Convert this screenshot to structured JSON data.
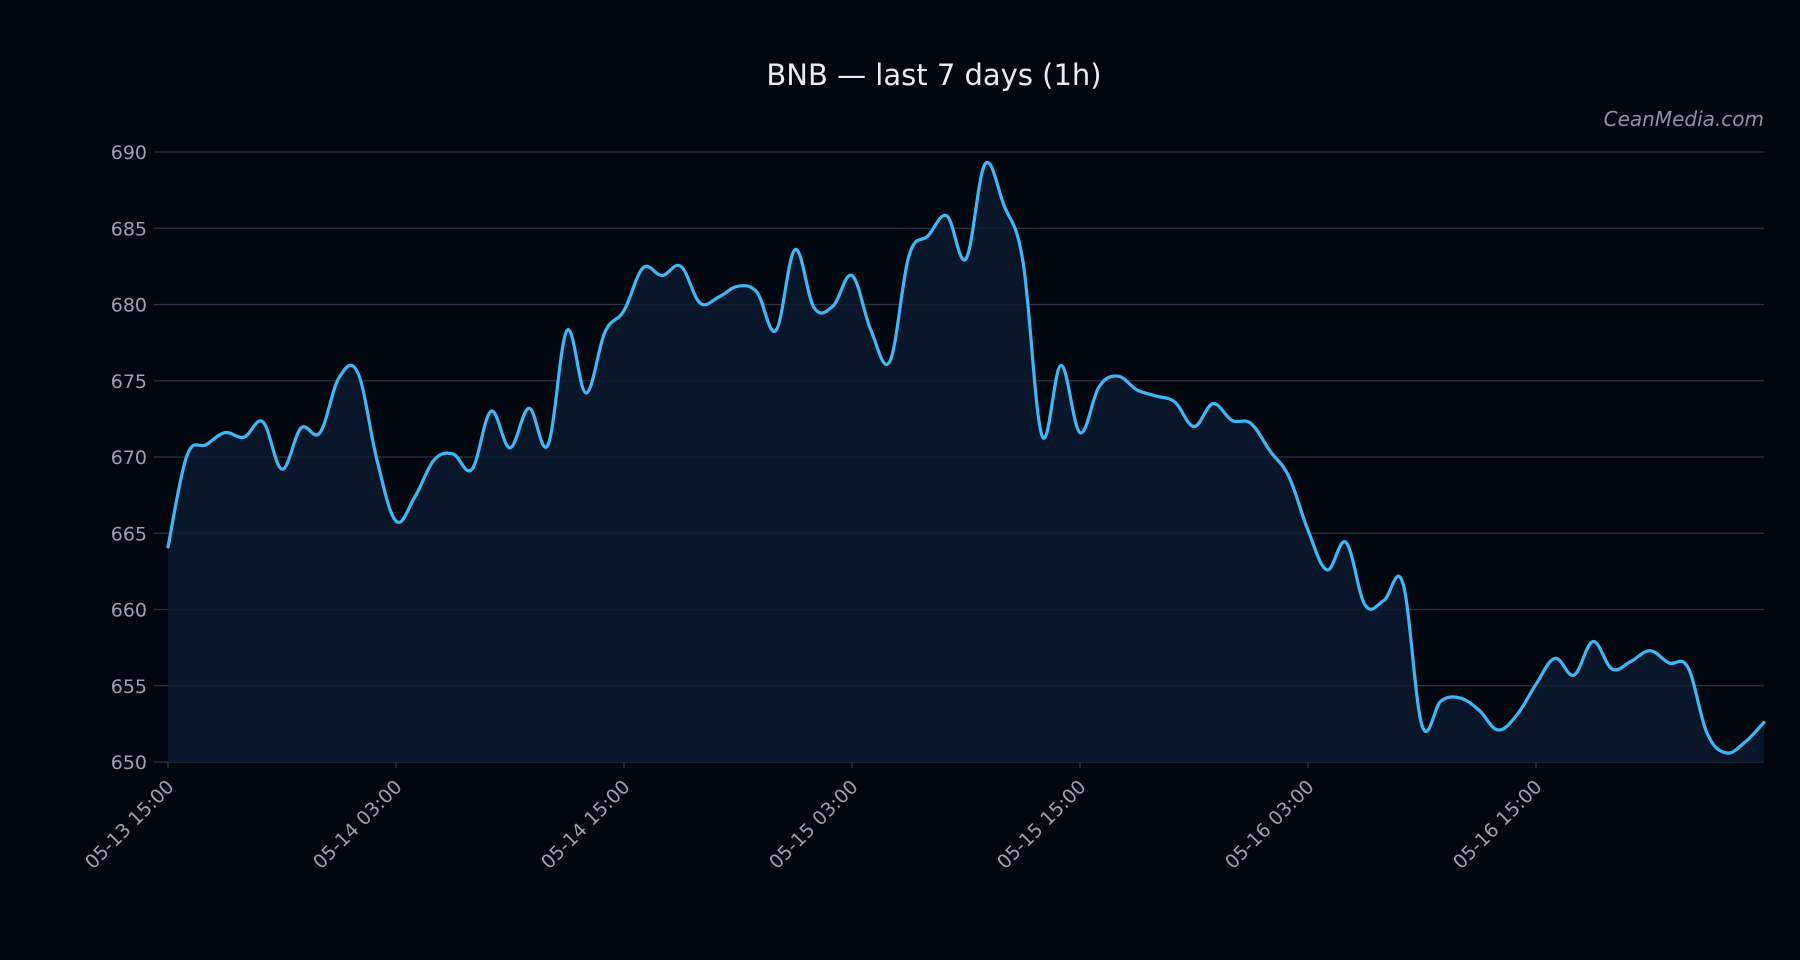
{
  "chart_data": {
    "type": "area",
    "title": "BNB — last 7 days (1h)",
    "watermark": "CeanMedia.com",
    "xlabel": "",
    "ylabel": "",
    "ylim": [
      650,
      690
    ],
    "y_ticks": [
      650,
      655,
      660,
      665,
      670,
      675,
      680,
      685,
      690
    ],
    "x_ticks": [
      {
        "index": 0,
        "label": "05-13 15:00"
      },
      {
        "index": 12,
        "label": "05-14 03:00"
      },
      {
        "index": 24,
        "label": "05-14 15:00"
      },
      {
        "index": 36,
        "label": "05-15 03:00"
      },
      {
        "index": 48,
        "label": "05-15 15:00"
      },
      {
        "index": 60,
        "label": "05-16 03:00"
      },
      {
        "index": 72,
        "label": "05-16 15:00"
      }
    ],
    "grid": true,
    "legend": "none",
    "colors": {
      "background": "#02060f",
      "line": "#3db8f5",
      "fill": "#0a1a2e",
      "grid": "#2b3445"
    },
    "series": [
      {
        "values": [
          664.1,
          670.1,
          670.8,
          671.6,
          671.3,
          672.3,
          669.2,
          671.9,
          671.6,
          675.2,
          675.5,
          669.8,
          665.8,
          667.4,
          669.8,
          670.2,
          669.2,
          673.0,
          670.6,
          673.2,
          670.8,
          678.3,
          674.2,
          678.2,
          679.6,
          682.4,
          681.9,
          682.5,
          680.1,
          680.5,
          681.2,
          680.8,
          678.3,
          683.6,
          679.8,
          679.9,
          681.9,
          678.3,
          676.3,
          683.2,
          684.5,
          685.8,
          683.0,
          689.2,
          686.5,
          682.8,
          671.4,
          676.0,
          671.6,
          674.6,
          675.3,
          674.4,
          674.0,
          673.6,
          672.0,
          673.5,
          672.4,
          672.2,
          670.4,
          668.7,
          665.2,
          662.6,
          664.4,
          660.3,
          660.6,
          661.7,
          652.4,
          654.0,
          654.2,
          653.4,
          652.1,
          653.1,
          655.1,
          656.8,
          655.7,
          657.9,
          656.1,
          656.6,
          657.3,
          656.5,
          656.2,
          651.9,
          650.6,
          651.3,
          652.6
        ]
      }
    ]
  }
}
